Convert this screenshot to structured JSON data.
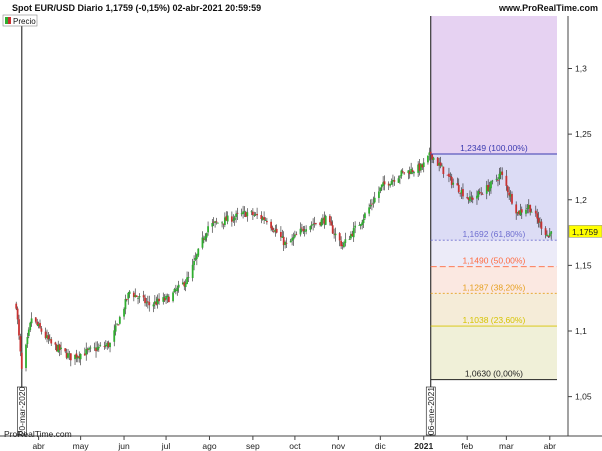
{
  "header": {
    "title": "Spot EUR/USD Diario 1,1759 (-0,15%) 02-abr-2021 20:59:59",
    "site": "www.ProRealTime.com",
    "legend_label": "Precio",
    "watermark": "ProRealTime.com"
  },
  "chart_data": {
    "type": "candlestick",
    "title": "Spot EUR/USD Diario 1,1759 (-0,15%) 02-abr-2021 20:59:59",
    "ylim": [
      1.02,
      1.34
    ],
    "y_ticks": [
      {
        "value": 1.3,
        "label": "1,3"
      },
      {
        "value": 1.25,
        "label": "1,25"
      },
      {
        "value": 1.2,
        "label": "1,2"
      },
      {
        "value": 1.15,
        "label": "1,15"
      },
      {
        "value": 1.1,
        "label": "1,1"
      },
      {
        "value": 1.05,
        "label": "1,05"
      }
    ],
    "x_ticks": [
      "abr",
      "may",
      "jun",
      "jul",
      "ago",
      "sep",
      "oct",
      "nov",
      "dic",
      "2021",
      "feb",
      "mar",
      "abr"
    ],
    "vertical_markers": [
      {
        "label": "20-mar-2020",
        "date": "2020-03-20"
      },
      {
        "label": "06-ene-2021",
        "date": "2021-01-06"
      }
    ],
    "last_price": {
      "value": 1.1759,
      "label": "1,1759"
    },
    "price_path": [
      {
        "date": "2020-03-16",
        "close": 1.12
      },
      {
        "date": "2020-03-20",
        "close": 1.07
      },
      {
        "date": "2020-03-27",
        "close": 1.11
      },
      {
        "date": "2020-04-10",
        "close": 1.09
      },
      {
        "date": "2020-04-24",
        "close": 1.08
      },
      {
        "date": "2020-05-08",
        "close": 1.085
      },
      {
        "date": "2020-05-22",
        "close": 1.09
      },
      {
        "date": "2020-06-05",
        "close": 1.13
      },
      {
        "date": "2020-06-19",
        "close": 1.12
      },
      {
        "date": "2020-07-03",
        "close": 1.125
      },
      {
        "date": "2020-07-17",
        "close": 1.14
      },
      {
        "date": "2020-07-31",
        "close": 1.18
      },
      {
        "date": "2020-08-14",
        "close": 1.185
      },
      {
        "date": "2020-08-28",
        "close": 1.19
      },
      {
        "date": "2020-09-11",
        "close": 1.185
      },
      {
        "date": "2020-09-25",
        "close": 1.165
      },
      {
        "date": "2020-10-09",
        "close": 1.18
      },
      {
        "date": "2020-10-23",
        "close": 1.185
      },
      {
        "date": "2020-11-04",
        "close": 1.165
      },
      {
        "date": "2020-11-18",
        "close": 1.185
      },
      {
        "date": "2020-12-02",
        "close": 1.21
      },
      {
        "date": "2020-12-16",
        "close": 1.22
      },
      {
        "date": "2020-12-31",
        "close": 1.225
      },
      {
        "date": "2021-01-06",
        "close": 1.2349
      },
      {
        "date": "2021-01-20",
        "close": 1.215
      },
      {
        "date": "2021-02-03",
        "close": 1.2
      },
      {
        "date": "2021-02-17",
        "close": 1.21
      },
      {
        "date": "2021-02-25",
        "close": 1.22
      },
      {
        "date": "2021-03-09",
        "close": 1.19
      },
      {
        "date": "2021-03-17",
        "close": 1.195
      },
      {
        "date": "2021-03-31",
        "close": 1.172
      },
      {
        "date": "2021-04-02",
        "close": 1.1759
      }
    ],
    "fibonacci": {
      "levels": [
        {
          "label": "1,2349 (100,00%)",
          "value": 1.2349,
          "color": "#3a3ab0"
        },
        {
          "label": "1,1692 (61,80%)",
          "value": 1.1692,
          "color": "#6f6fd0"
        },
        {
          "label": "1,1490 (50,00%)",
          "value": 1.149,
          "color": "#ff6a3d"
        },
        {
          "label": "1,1287 (38,20%)",
          "value": 1.1287,
          "color": "#e6a020"
        },
        {
          "label": "1,1038 (23,60%)",
          "value": 1.1038,
          "color": "#d6c400"
        },
        {
          "label": "1,0630 (0,00%)",
          "value": 1.063,
          "color": "#222222"
        }
      ]
    },
    "colors": {
      "up": "#2fae2f",
      "down": "#c83232",
      "wick": "#222222"
    }
  }
}
